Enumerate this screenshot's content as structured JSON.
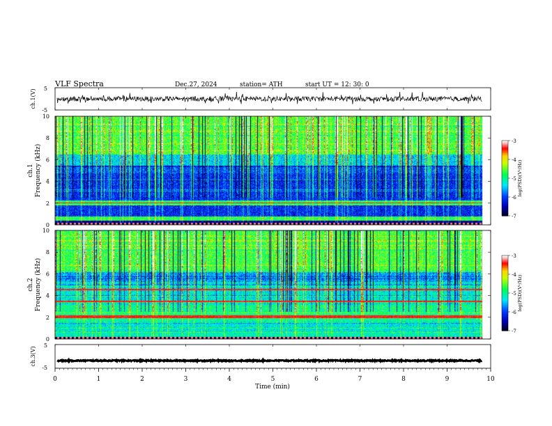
{
  "header": {
    "title": "VLF  Spectra",
    "date": "Dec.27, 2024",
    "station": "station= ATH",
    "start_ut": "start  UT  =   12: 30: 0"
  },
  "chart_data": [
    {
      "type": "line",
      "ylabel": "ch.1(V)",
      "ylim": [
        -5,
        5
      ],
      "yticks": [
        "5",
        "-5"
      ],
      "xlim": [
        0,
        10
      ],
      "baseline": 0,
      "color": "#000000"
    },
    {
      "type": "heatmap",
      "ylabel_lines": [
        "ch.1",
        "Frequency  (kHz)"
      ],
      "ylim": [
        0,
        10
      ],
      "yticks": [
        "0",
        "2",
        "4",
        "6",
        "8",
        "10"
      ],
      "xlim": [
        0,
        10
      ],
      "data_end_min": 9.8,
      "colorbar": {
        "label": "log(PSD)(V²/Hz)",
        "range": [
          -7,
          -3
        ],
        "ticks": [
          "-3",
          "-4",
          "-5",
          "-6",
          "-7"
        ]
      }
    },
    {
      "type": "heatmap",
      "ylabel_lines": [
        "ch.2",
        "Frequency  (kHz)"
      ],
      "ylim": [
        0,
        10
      ],
      "yticks": [
        "0",
        "2",
        "4",
        "6",
        "8",
        "10"
      ],
      "xlim": [
        0,
        10
      ],
      "data_end_min": 9.8,
      "colorbar": {
        "label": "log(PSD)(V²/Hz)",
        "range": [
          -7,
          -3
        ],
        "ticks": [
          "-3",
          "-4",
          "-5",
          "-6",
          "-7"
        ]
      }
    },
    {
      "type": "line",
      "ylabel": "ch.3(V)",
      "ylim": [
        -5,
        5
      ],
      "yticks": [
        "5",
        "-5"
      ],
      "xlim": [
        0,
        10
      ],
      "baseline": -1.8,
      "color": "#000000"
    }
  ],
  "x_axis": {
    "label": "Time  (min)",
    "ticks": [
      "0",
      "1",
      "2",
      "3",
      "4",
      "5",
      "6",
      "7",
      "8",
      "9",
      "10"
    ]
  },
  "colors": {
    "scale": [
      "#000044",
      "#0000ff",
      "#00ffff",
      "#00ff00",
      "#ffff00",
      "#ff0000",
      "#ffffff"
    ]
  }
}
